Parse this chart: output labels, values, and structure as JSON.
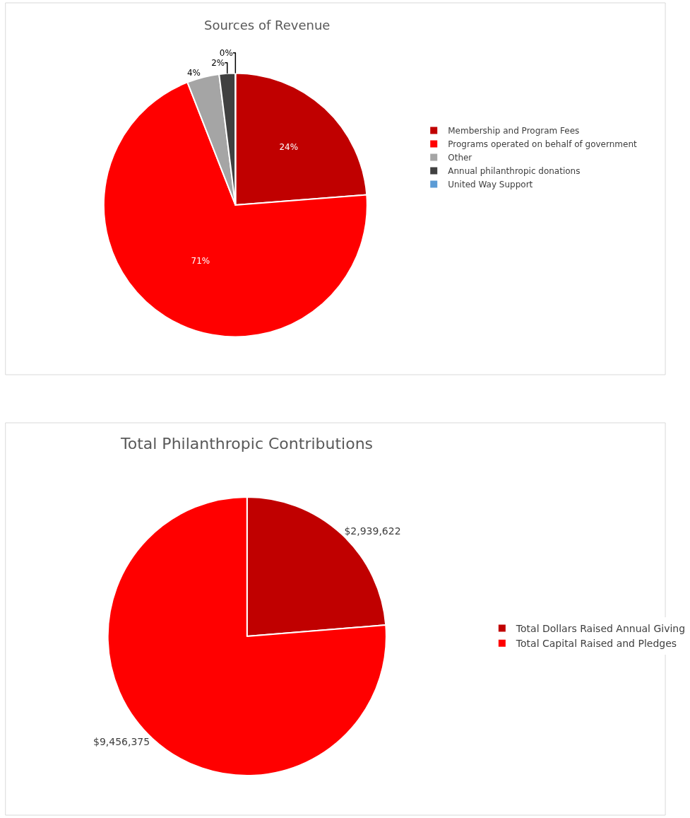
{
  "chart_data": [
    {
      "type": "pie",
      "title": "Sources of Revenue",
      "categories": [
        "Membership and Program Fees",
        "Programs operated on behalf of government",
        "Other",
        "Annual philanthropic donations",
        "United Way Support"
      ],
      "values": [
        24,
        71,
        4,
        2,
        0
      ],
      "colors": [
        "#c00000",
        "#ff0000",
        "#a5a5a5",
        "#404040",
        "#5b9bd5"
      ],
      "value_labels": [
        "24%",
        "71%",
        "4%",
        "2%",
        "0%"
      ],
      "legend": "right"
    },
    {
      "type": "pie",
      "title": "Total Philanthropic Contributions",
      "categories": [
        "Total Dollars Raised Annual Giving",
        "Total Capital Raised and Pledges"
      ],
      "values": [
        2939622,
        9456375
      ],
      "colors": [
        "#c00000",
        "#ff0000"
      ],
      "value_labels": [
        "$2,939,622",
        "$9,456,375"
      ],
      "legend": "right"
    }
  ]
}
